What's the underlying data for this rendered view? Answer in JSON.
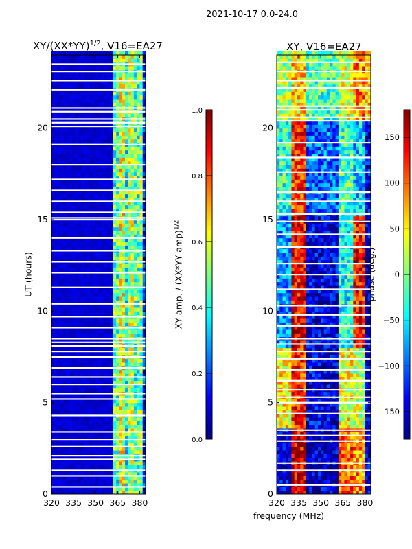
{
  "chart_data": [
    {
      "type": "heatmap",
      "title": "XY/(XX*YY)^1/2, V16=EA27",
      "title_main": "XY/(XX*YY)",
      "title_sup": "1/2",
      "title_rest": ", V16=EA27",
      "xlabel": "frequency (MHz)",
      "ylabel": "UT (hours)",
      "xlim": [
        320,
        384
      ],
      "ylim": [
        0,
        24
      ],
      "xticks": [
        "320",
        "335",
        "350",
        "365",
        "380"
      ],
      "yticks": [
        "0",
        "5",
        "10",
        "15",
        "20"
      ],
      "colorbar": {
        "label_main": "XY amp. / (XX*YY amp)",
        "label_sup": "1/2",
        "range": [
          0,
          1
        ],
        "ticks": [
          "0.0",
          "0.2",
          "0.4",
          "0.6",
          "0.8",
          "1.0"
        ],
        "colormap": "jet"
      },
      "freq_bands": [
        [
          320,
          362
        ],
        [
          362,
          366
        ],
        [
          366,
          369
        ],
        [
          369,
          372
        ],
        [
          372,
          376
        ],
        [
          376,
          379
        ],
        [
          379,
          382
        ],
        [
          382,
          384
        ]
      ],
      "band_values": [
        0.05,
        0.45,
        0.6,
        0.4,
        0.55,
        0.45,
        0.5,
        0.12
      ],
      "flagged_hours": [
        0.4,
        1.0,
        1.3,
        1.9,
        2.1,
        2.6,
        3.0,
        3.4,
        4.3,
        5.2,
        5.5,
        6.0,
        6.4,
        6.9,
        7.5,
        7.8,
        8.1,
        8.3,
        8.5,
        9.1,
        9.7,
        10.4,
        11.3,
        12.1,
        12.7,
        13.3,
        14.0,
        15.0,
        15.1,
        15.4,
        16.0,
        16.6,
        17.2,
        18.0,
        19.1,
        20.1,
        20.3,
        20.5,
        20.9,
        21.1,
        22.1,
        22.6,
        23.1,
        23.5
      ]
    },
    {
      "type": "heatmap",
      "title": "XY, V16=EA27",
      "xlabel": "frequency (MHz)",
      "ylabel": "",
      "xlim": [
        320,
        384
      ],
      "ylim": [
        0,
        24
      ],
      "xticks": [
        "320",
        "335",
        "350",
        "365",
        "380"
      ],
      "yticks": [
        "0",
        "5",
        "10",
        "15",
        "20"
      ],
      "colorbar": {
        "label": "phase (deg.)",
        "range": [
          -180,
          180
        ],
        "ticks": [
          "−150",
          "−100",
          "−50",
          "0",
          "50",
          "100",
          "150"
        ],
        "tick_values": [
          -150,
          -100,
          -50,
          0,
          50,
          100,
          150
        ],
        "colormap": "jet"
      },
      "time_segments": [
        [
          0,
          3.5
        ],
        [
          3.5,
          8
        ],
        [
          8,
          15
        ],
        [
          15,
          20.3
        ],
        [
          20.3,
          24
        ]
      ],
      "freq_bands": [
        [
          320,
          330
        ],
        [
          330,
          340
        ],
        [
          340,
          362
        ],
        [
          362,
          372
        ],
        [
          372,
          380
        ],
        [
          380,
          384
        ]
      ],
      "phase_values": [
        [
          -150,
          150,
          -160,
          100,
          80,
          -160
        ],
        [
          50,
          120,
          -150,
          40,
          20,
          -160
        ],
        [
          -80,
          140,
          -150,
          -40,
          130,
          -160
        ],
        [
          -30,
          120,
          -100,
          -20,
          -60,
          -150
        ],
        [
          10,
          60,
          -20,
          30,
          90,
          60
        ]
      ],
      "flagged_hours": [
        0.5,
        1.3,
        1.7,
        2.9,
        3.2,
        3.5,
        4.4,
        5.0,
        5.3,
        5.7,
        6.2,
        6.8,
        7.4,
        7.8,
        8.2,
        8.5,
        9.2,
        9.8,
        10.3,
        11.2,
        12.0,
        12.6,
        13.5,
        14.2,
        14.9,
        15.3,
        16.0,
        16.5,
        17.6,
        18.4,
        19.2,
        20.4,
        20.6,
        21.0,
        21.2,
        22.2,
        22.6,
        23.1,
        23.6
      ]
    }
  ],
  "suptitle": "2021-10-17 0.0-24.0",
  "shared_xlabel": "frequency (MHz)"
}
